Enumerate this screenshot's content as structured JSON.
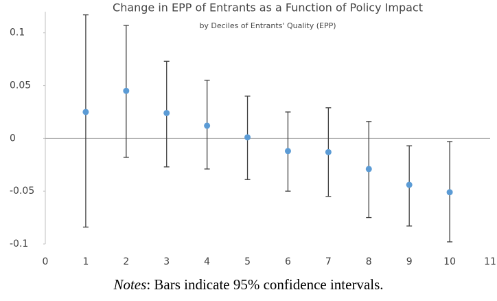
{
  "chart_data": {
    "type": "errorbar",
    "title": "Change in EPP of Entrants as a Function of Policy Impact",
    "subtitle": "by Deciles of Entrants' Quality (EPP)",
    "x": [
      1,
      2,
      3,
      4,
      5,
      6,
      7,
      8,
      9,
      10
    ],
    "values": [
      0.025,
      0.045,
      0.024,
      0.012,
      0.001,
      -0.012,
      -0.013,
      -0.029,
      -0.044,
      -0.051
    ],
    "ci_low": [
      -0.084,
      -0.018,
      -0.027,
      -0.029,
      -0.039,
      -0.05,
      -0.055,
      -0.075,
      -0.083,
      -0.098
    ],
    "ci_high": [
      0.117,
      0.107,
      0.073,
      0.055,
      0.04,
      0.025,
      0.029,
      0.016,
      -0.007,
      -0.003
    ],
    "color": "#5b9bd5",
    "error_color": "#404040",
    "xlim": [
      0,
      11
    ],
    "xticks": [
      0,
      1,
      2,
      3,
      4,
      5,
      6,
      7,
      8,
      9,
      10,
      11
    ],
    "ylim": [
      -0.1,
      0.12
    ],
    "yticks": [
      -0.1,
      -0.05,
      0,
      0.05,
      0.1
    ],
    "notes_label": "Notes",
    "notes_text": ": Bars indicate 95% confidence intervals."
  }
}
